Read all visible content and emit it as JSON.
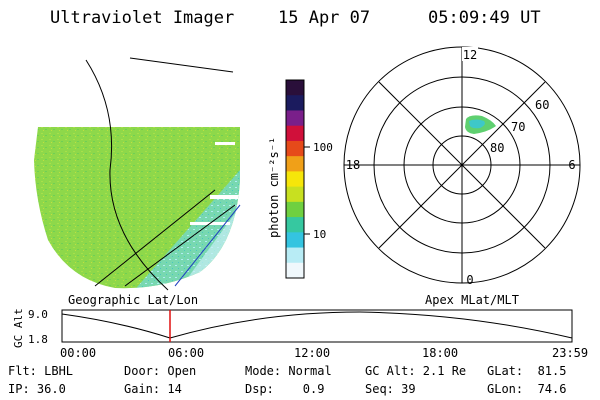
{
  "header": {
    "instrument": "Ultraviolet Imager",
    "date": "15 Apr 07",
    "time": "05:09:49 UT"
  },
  "colorbar": {
    "unit_label": "photon cm⁻²s⁻¹",
    "ticks": [
      "100",
      "10"
    ],
    "colors": [
      "#2a0f3a",
      "#1b1b5e",
      "#7a1f8a",
      "#d0103a",
      "#e64a1a",
      "#f0a018",
      "#f6e60a",
      "#c8e020",
      "#6fd040",
      "#36c8a0",
      "#34c4e0",
      "#b8ecf5",
      "#f0f8fc"
    ]
  },
  "geographic": {
    "label": "Geographic Lat/Lon"
  },
  "apex": {
    "label": "Apex MLat/MLT",
    "mlt_labels": {
      "top": "12",
      "left": "18",
      "right": "6",
      "bottom": "0"
    },
    "mlat_labels": [
      "60",
      "70",
      "80"
    ]
  },
  "gc_alt_plot": {
    "ylabel": "GC Alt",
    "y_ticks": [
      "9.0",
      "1.8"
    ],
    "x_ticks": [
      "00:00",
      "06:00",
      "12:00",
      "18:00",
      "23:59"
    ],
    "current_marker_time": "05:09:49"
  },
  "footer": {
    "row1": {
      "filter": "Flt: LBHL",
      "door": "Door: Open",
      "mode": "Mode: Normal",
      "gc_alt": "GC Alt: 2.1 Re",
      "glat": "GLat:  81.5"
    },
    "row2": {
      "ip": "IP: 36.0",
      "gain": "Gain: 14",
      "dsp": "Dsp:    0.9",
      "seq": "Seq: 39",
      "glon": "GLon:  74.6"
    }
  }
}
